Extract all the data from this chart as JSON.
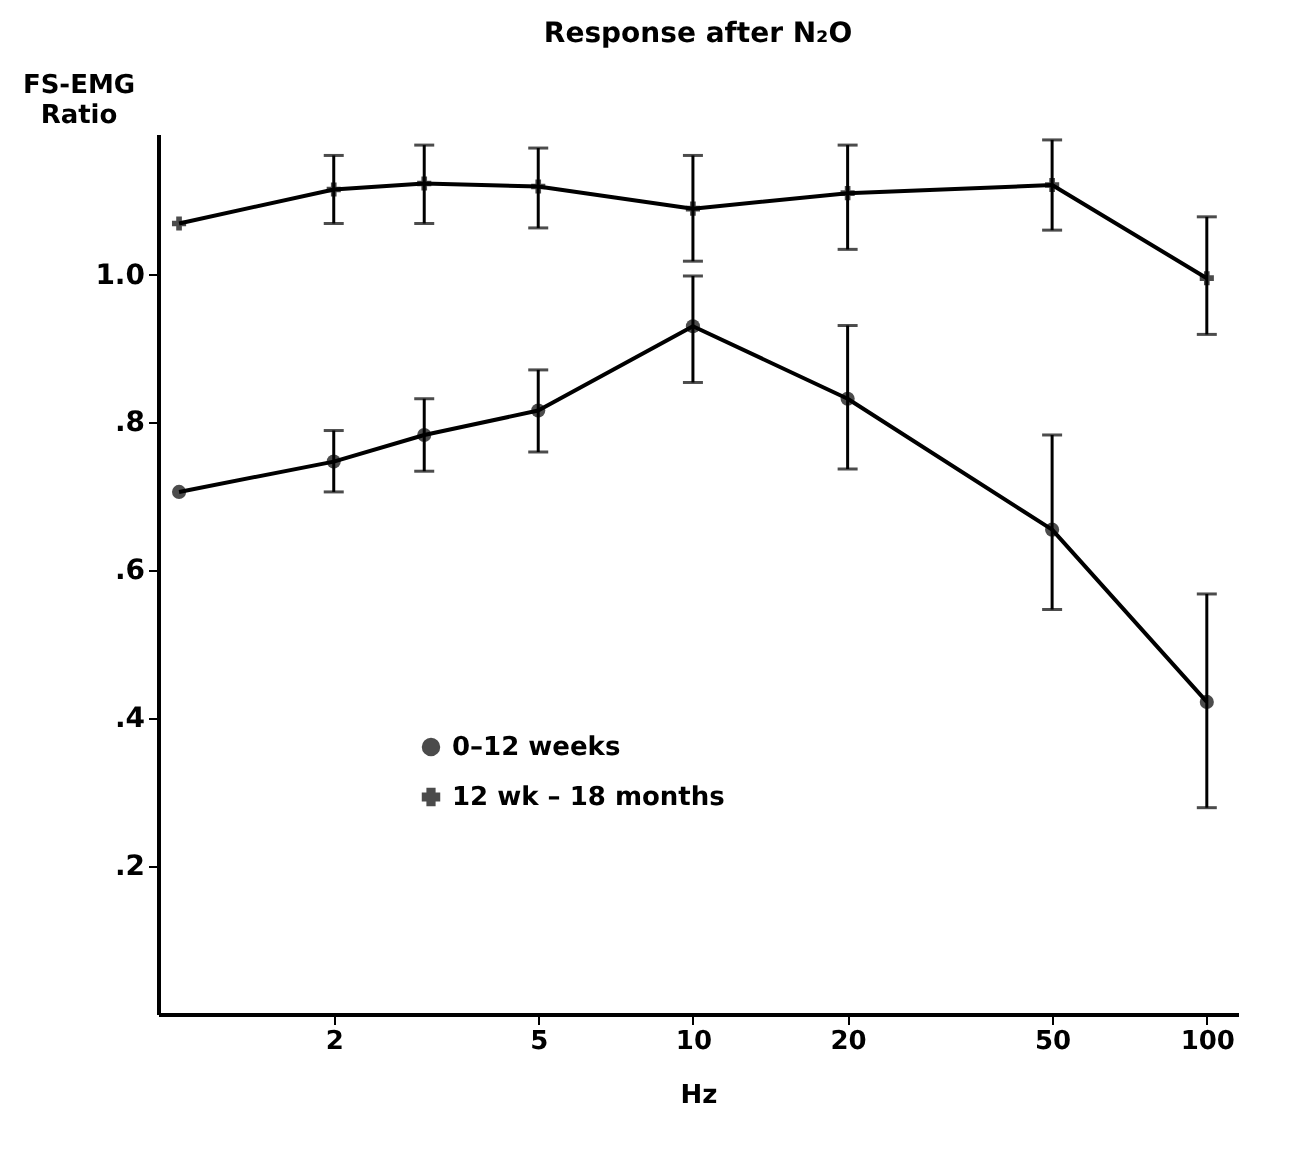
{
  "chart_data": {
    "type": "line",
    "title": "Response after N₂O",
    "xlabel": "Hz",
    "ylabel": "FS-EMG Ratio",
    "x": [
      1,
      2,
      3,
      5,
      10,
      20,
      50,
      100
    ],
    "series": [
      {
        "name": "0–12 weeks",
        "color": "#000000",
        "marker": "circle",
        "values": [
          0.706,
          0.747,
          0.783,
          0.816,
          0.93,
          0.832,
          0.655,
          0.422
        ],
        "errors": [
          null,
          [
            0.706,
            0.789
          ],
          [
            0.734,
            0.832
          ],
          [
            0.76,
            0.871
          ],
          [
            0.854,
            0.998
          ],
          [
            0.737,
            0.931
          ],
          [
            0.547,
            0.783
          ],
          [
            0.279,
            0.568
          ]
        ]
      },
      {
        "name": "12 wk – 18 months",
        "color": "#000000",
        "marker": "cross",
        "values": [
          1.069,
          1.115,
          1.123,
          1.119,
          1.089,
          1.11,
          1.121,
          0.995
        ],
        "errors": [
          null,
          [
            1.069,
            1.161
          ],
          [
            1.069,
            1.175
          ],
          [
            1.063,
            1.171
          ],
          [
            1.018,
            1.161
          ],
          [
            1.034,
            1.175
          ],
          [
            1.06,
            1.182
          ],
          [
            0.919,
            1.078
          ]
        ]
      }
    ],
    "log": "x",
    "xlim": [
      0.91,
      115
    ],
    "xticks": [
      2,
      5,
      10,
      20,
      50,
      100
    ],
    "ylim": [
      0,
      1.19
    ],
    "yticks": [
      {
        "value": 0.2,
        "label": ".2"
      },
      {
        "value": 0.4,
        "label": ".4"
      },
      {
        "value": 0.6,
        "label": ".6"
      },
      {
        "value": 0.8,
        "label": ".8"
      },
      {
        "value": 1.0,
        "label": "1.0"
      }
    ],
    "legend": "left",
    "grid": false,
    "line_style": "solid"
  }
}
